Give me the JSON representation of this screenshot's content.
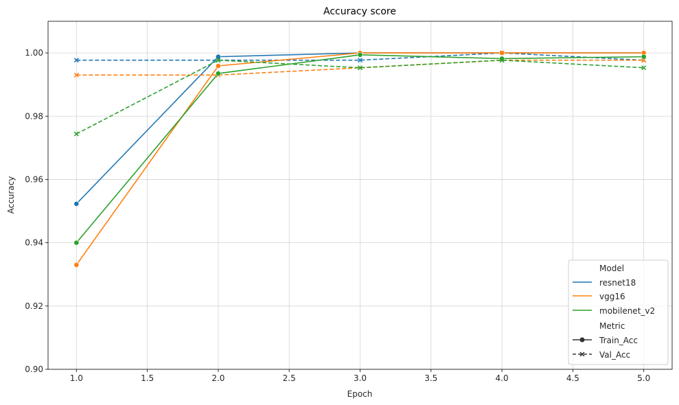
{
  "chart_data": {
    "type": "line",
    "title": "Accuracy score",
    "xlabel": "Epoch",
    "ylabel": "Accuracy",
    "xlim": [
      0.8,
      5.2
    ],
    "ylim": [
      0.9,
      1.01
    ],
    "x_ticks": [
      1.0,
      1.5,
      2.0,
      2.5,
      3.0,
      3.5,
      4.0,
      4.5,
      5.0
    ],
    "x_tick_labels": [
      "1.0",
      "1.5",
      "2.0",
      "2.5",
      "3.0",
      "3.5",
      "4.0",
      "4.5",
      "5.0"
    ],
    "y_ticks": [
      0.9,
      0.92,
      0.94,
      0.96,
      0.98,
      1.0
    ],
    "y_tick_labels": [
      "0.90",
      "0.92",
      "0.94",
      "0.96",
      "0.98",
      "1.00"
    ],
    "grid": true,
    "legend_position": "lower-right",
    "legend": {
      "model_header": "Model",
      "metric_header": "Metric",
      "models": [
        {
          "name": "resnet18",
          "color": "#1f77b4"
        },
        {
          "name": "vgg16",
          "color": "#ff7f0e"
        },
        {
          "name": "mobilenet_v2",
          "color": "#2ca02c"
        }
      ],
      "metrics": [
        {
          "name": "Train_Acc",
          "marker": "circle",
          "dash": "solid"
        },
        {
          "name": "Val_Acc",
          "marker": "x",
          "dash": "dashed"
        }
      ]
    },
    "x": [
      1,
      2,
      3,
      4,
      5
    ],
    "series": [
      {
        "name": "resnet18",
        "metric": "Train_Acc",
        "color": "#1f77b4",
        "values": [
          0.9523,
          0.9988,
          1.0,
          1.0,
          1.0
        ]
      },
      {
        "name": "resnet18",
        "metric": "Val_Acc",
        "color": "#1f77b4",
        "values": [
          0.9977,
          0.9977,
          0.9977,
          1.0,
          0.9977
        ]
      },
      {
        "name": "vgg16",
        "metric": "Train_Acc",
        "color": "#ff7f0e",
        "values": [
          0.933,
          0.9959,
          1.0,
          1.0,
          1.0
        ]
      },
      {
        "name": "vgg16",
        "metric": "Val_Acc",
        "color": "#ff7f0e",
        "values": [
          0.993,
          0.993,
          0.9953,
          0.9977,
          0.9977
        ]
      },
      {
        "name": "mobilenet_v2",
        "metric": "Train_Acc",
        "color": "#2ca02c",
        "values": [
          0.94,
          0.9935,
          0.9994,
          0.9982,
          0.9988
        ]
      },
      {
        "name": "mobilenet_v2",
        "metric": "Val_Acc",
        "color": "#2ca02c",
        "values": [
          0.9744,
          0.9977,
          0.9953,
          0.9977,
          0.9953
        ]
      }
    ]
  }
}
